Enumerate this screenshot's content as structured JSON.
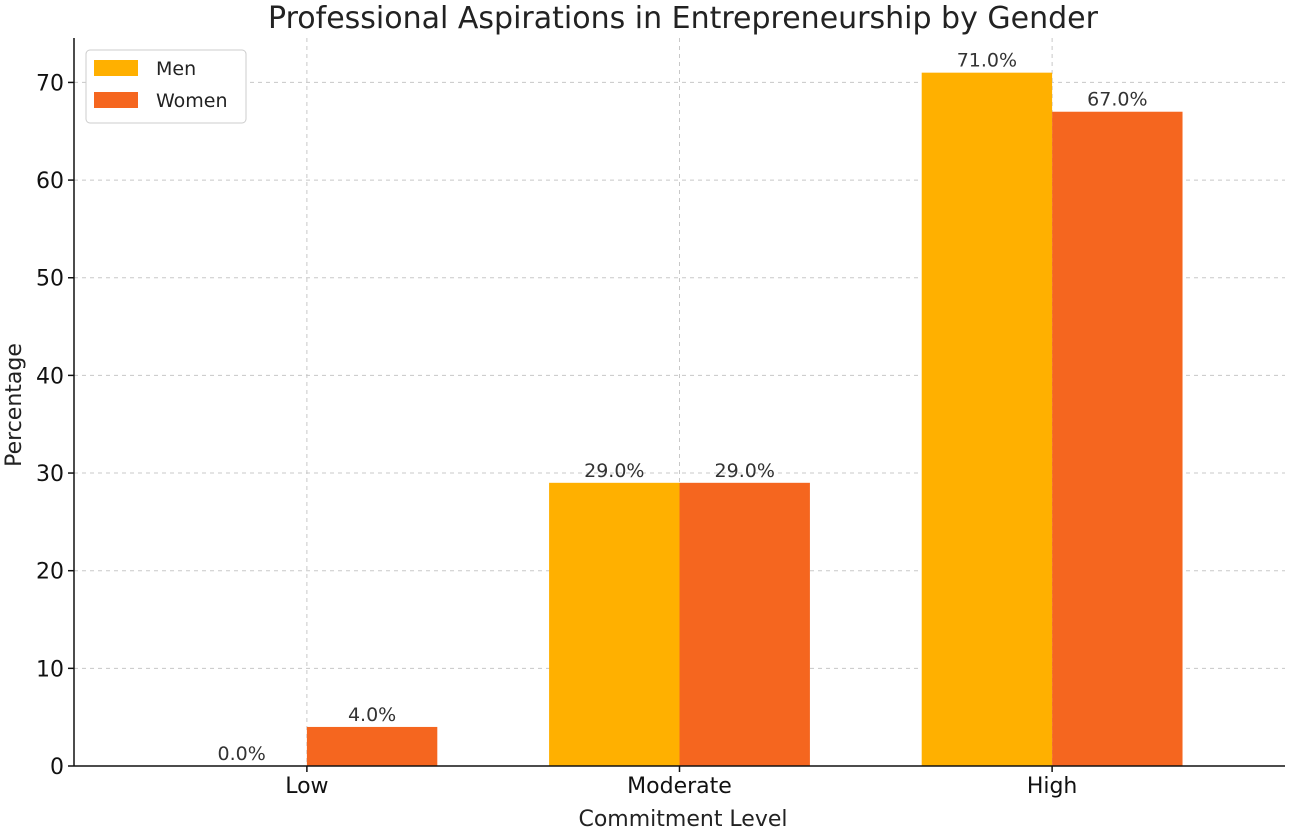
{
  "chart_data": {
    "type": "bar",
    "title": "Professional Aspirations in Entrepreneurship by Gender",
    "xlabel": "Commitment Level",
    "ylabel": "Percentage",
    "categories": [
      "Low",
      "Moderate",
      "High"
    ],
    "series": [
      {
        "name": "Men",
        "values": [
          0.0,
          29.0,
          71.0
        ],
        "labels": [
          "0.0%",
          "29.0%",
          "71.0%"
        ],
        "color": "#FFB000"
      },
      {
        "name": "Women",
        "values": [
          4.0,
          29.0,
          67.0
        ],
        "labels": [
          "4.0%",
          "29.0%",
          "67.0%"
        ],
        "color": "#F5661F"
      }
    ],
    "ylim": [
      0,
      74.55
    ],
    "yticks": [
      0,
      10,
      20,
      30,
      40,
      50,
      60,
      70
    ],
    "grid": true,
    "legend_position": "top-left"
  }
}
